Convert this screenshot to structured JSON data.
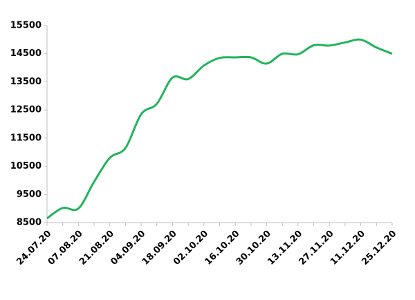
{
  "chart_data": {
    "type": "line",
    "categories": [
      "24.07.20",
      null,
      "07.08.20",
      null,
      "21.08.20",
      null,
      "04.09.20",
      null,
      "18.09.20",
      null,
      "02.10.20",
      null,
      "16.10.20",
      null,
      "30.10.20",
      null,
      "13.11.20",
      null,
      "27.11.20",
      null,
      "11.12.20",
      null,
      "25.12.20"
    ],
    "series": [
      {
        "color": "#1fb45a",
        "values": [
          8650,
          9020,
          9000,
          9950,
          10800,
          11150,
          12350,
          12720,
          13650,
          13600,
          14080,
          14350,
          14370,
          14370,
          14150,
          14500,
          14480,
          14800,
          14790,
          14900,
          15000,
          14720,
          14500
        ]
      }
    ],
    "ylim": [
      8500,
      15500
    ],
    "yticks": [
      8500,
      9500,
      10500,
      11500,
      12500,
      13500,
      14500,
      15500
    ],
    "grid": false
  }
}
